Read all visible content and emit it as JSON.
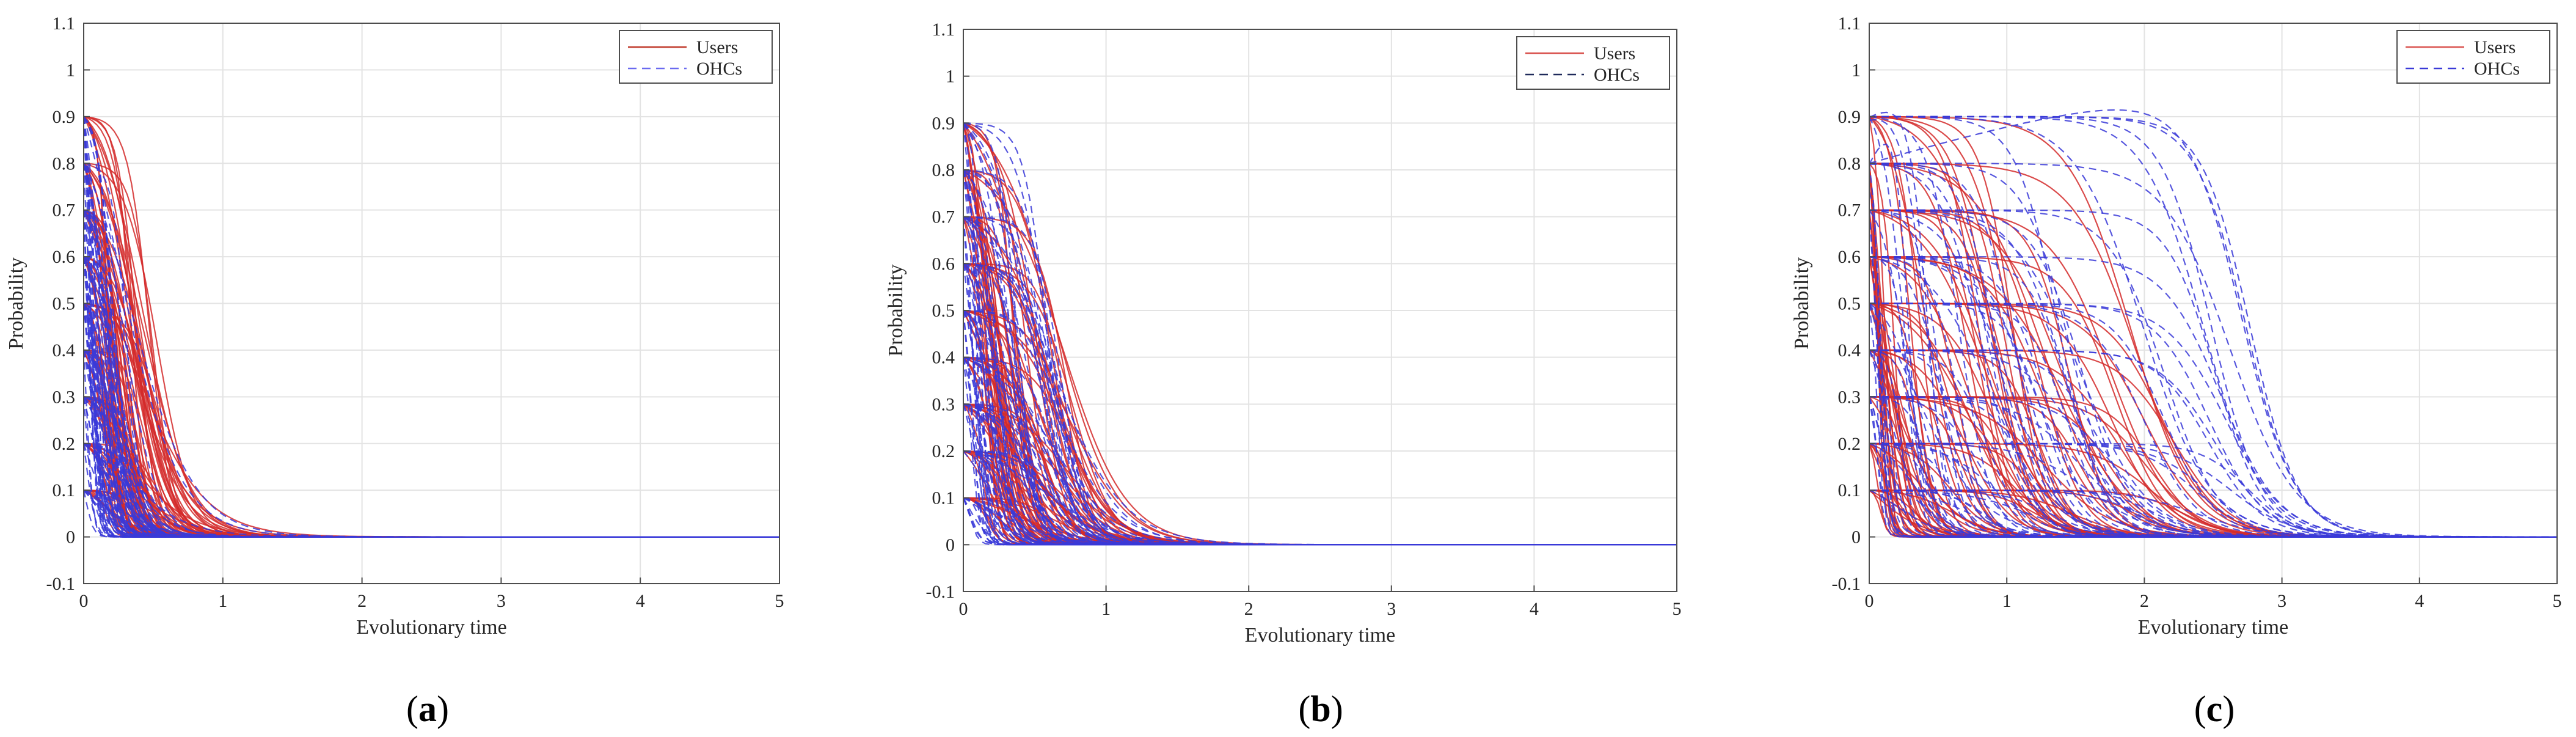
{
  "chart_data": [
    {
      "type": "line",
      "panel_label": "a",
      "xlabel": "Evolutionary time",
      "ylabel": "Probability",
      "xlim": [
        0,
        5
      ],
      "ylim": [
        -0.1,
        1.1
      ],
      "xticks": [
        "0",
        "1",
        "2",
        "3",
        "4",
        "5"
      ],
      "yticks": [
        "-0.1",
        "0",
        "0.1",
        "0.2",
        "0.3",
        "0.4",
        "0.5",
        "0.6",
        "0.7",
        "0.8",
        "0.9",
        "1",
        "1.1"
      ],
      "grid": true,
      "legend": {
        "placement": "top-right",
        "entries": [
          {
            "label": "Users",
            "color": "#c0392b",
            "style": "solid"
          },
          {
            "label": "OHCs",
            "color": "#6a6af0",
            "style": "dashed"
          }
        ]
      },
      "series": [
        {
          "name": "Users",
          "color": "#d42a2a",
          "style": "solid",
          "initial_values": [
            0.9,
            0.8,
            0.7,
            0.6,
            0.5,
            0.4,
            0.3,
            0.2,
            0.1
          ],
          "half_decay_time_range": [
            0.15,
            0.55
          ],
          "converges_to": 0
        },
        {
          "name": "OHCs",
          "color": "#3a3ad8",
          "style": "dashed",
          "initial_values": [
            0.9,
            0.8,
            0.7,
            0.6,
            0.5,
            0.4,
            0.3,
            0.2,
            0.1
          ],
          "half_decay_time_range": [
            0.02,
            0.35
          ],
          "converges_to": 0
        }
      ]
    },
    {
      "type": "line",
      "panel_label": "b",
      "xlabel": "Evolutionary time",
      "ylabel": "Probability",
      "xlim": [
        0,
        5
      ],
      "ylim": [
        -0.1,
        1.1
      ],
      "xticks": [
        "0",
        "1",
        "2",
        "3",
        "4",
        "5"
      ],
      "yticks": [
        "-0.1",
        "0",
        "0.1",
        "0.2",
        "0.3",
        "0.4",
        "0.5",
        "0.6",
        "0.7",
        "0.8",
        "0.9",
        "1",
        "1.1"
      ],
      "grid": true,
      "legend": {
        "placement": "top-right",
        "entries": [
          {
            "label": "Users",
            "color": "#d9534f",
            "style": "solid"
          },
          {
            "label": "OHCs",
            "color": "#1f2a5a",
            "style": "dashed"
          }
        ]
      },
      "series": [
        {
          "name": "Users",
          "color": "#d42a2a",
          "style": "solid",
          "initial_values": [
            0.9,
            0.8,
            0.7,
            0.6,
            0.5,
            0.4,
            0.3,
            0.2,
            0.1
          ],
          "half_decay_time_range": [
            0.15,
            0.8
          ],
          "converges_to": 0
        },
        {
          "name": "OHCs",
          "color": "#3a3ad8",
          "style": "dashed",
          "initial_values": [
            0.9,
            0.8,
            0.7,
            0.6,
            0.5,
            0.4,
            0.3,
            0.2,
            0.1
          ],
          "half_decay_time_range": [
            0.03,
            0.7
          ],
          "converges_to": 0
        }
      ]
    },
    {
      "type": "line",
      "panel_label": "c",
      "xlabel": "Evolutionary time",
      "ylabel": "Probability",
      "xlim": [
        0,
        5
      ],
      "ylim": [
        -0.1,
        1.1
      ],
      "xticks": [
        "0",
        "1",
        "2",
        "3",
        "4",
        "5"
      ],
      "yticks": [
        "-0.1",
        "0",
        "0.1",
        "0.2",
        "0.3",
        "0.4",
        "0.5",
        "0.6",
        "0.7",
        "0.8",
        "0.9",
        "1",
        "1.1"
      ],
      "grid": true,
      "legend": {
        "placement": "top-right",
        "entries": [
          {
            "label": "Users",
            "color": "#d9534f",
            "style": "solid"
          },
          {
            "label": "OHCs",
            "color": "#3a3ad8",
            "style": "dashed"
          }
        ]
      },
      "series": [
        {
          "name": "Users",
          "color": "#d42a2a",
          "style": "solid",
          "initial_values": [
            0.9,
            0.8,
            0.7,
            0.6,
            0.5,
            0.4,
            0.3,
            0.2,
            0.1
          ],
          "half_decay_time_range": [
            0.05,
            2.3
          ],
          "converges_to": 0
        },
        {
          "name": "OHCs",
          "color": "#3a3ad8",
          "style": "dashed",
          "initial_values": [
            0.9,
            0.8,
            0.7,
            0.6,
            0.5,
            0.4,
            0.3,
            0.2,
            0.1
          ],
          "half_decay_time_range": [
            0.05,
            2.9
          ],
          "peak_max": 0.975,
          "converges_to": 0
        }
      ]
    }
  ]
}
